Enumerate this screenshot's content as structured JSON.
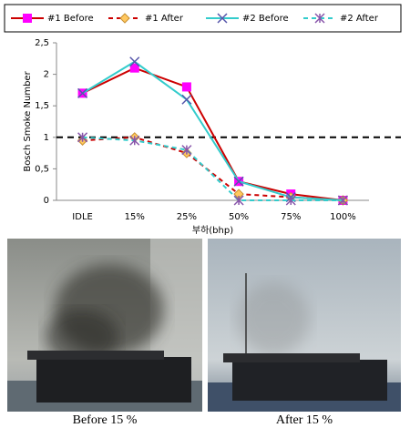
{
  "chart_data": {
    "type": "line",
    "categories": [
      "IDLE",
      "15%",
      "25%",
      "50%",
      "75%",
      "100%"
    ],
    "x_label": "부하(bhp)",
    "y_label": "Bosch Smoke Number",
    "ylim": [
      0,
      2.5
    ],
    "yticks": [
      0,
      {
        "value": 0.5,
        "label": "0,5"
      },
      1,
      {
        "value": 1.5,
        "label": "1,5"
      },
      2,
      {
        "value": 2.5,
        "label": "2,5"
      }
    ],
    "reference_line": 1,
    "series": [
      {
        "name": "#1 Before",
        "color": "#cc0000",
        "marker_color": "#ff00ff",
        "marker": "square",
        "dashed": false,
        "values": [
          1.7,
          2.1,
          1.8,
          0.3,
          0.1,
          0
        ]
      },
      {
        "name": "#1 After",
        "color": "#cc0000",
        "marker_color": "#ffc860",
        "marker": "diamond",
        "dashed": true,
        "values": [
          0.95,
          1.0,
          0.75,
          0.1,
          0.05,
          0
        ]
      },
      {
        "name": "#2 Before",
        "color": "#33cccc",
        "marker_color": "#5555aa",
        "marker": "x",
        "dashed": false,
        "values": [
          1.7,
          2.2,
          1.6,
          0.3,
          0.05,
          0
        ]
      },
      {
        "name": "#2 After",
        "color": "#33cccc",
        "marker_color": "#8855aa",
        "marker": "star",
        "dashed": true,
        "values": [
          1.0,
          0.95,
          0.8,
          0,
          0,
          0
        ]
      }
    ]
  },
  "photos": {
    "captions": [
      "Before  15 %",
      "After  15 %"
    ]
  }
}
